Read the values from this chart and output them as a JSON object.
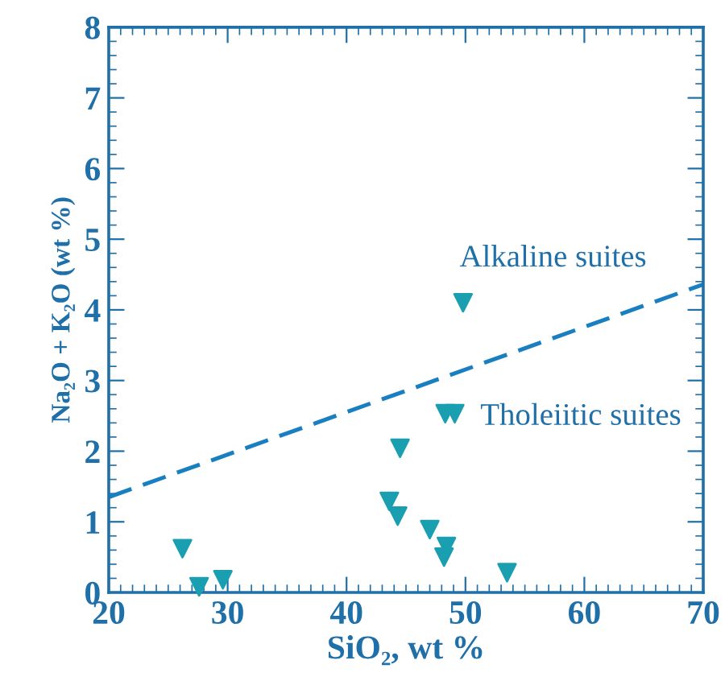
{
  "chart_data": {
    "type": "scatter",
    "xlabel": "SiO₂, wt %",
    "ylabel": "Na₂O + K₂O (wt %)",
    "xlim": [
      20,
      70
    ],
    "xticks": [
      20,
      30,
      40,
      50,
      60,
      70
    ],
    "ylim": [
      0,
      8
    ],
    "yticks": [
      0,
      1,
      2,
      3,
      4,
      5,
      6,
      7,
      8
    ],
    "grid": false,
    "legend": false,
    "annotations": [
      "Alkaline suites",
      "Tholeiitic suites"
    ],
    "series": [
      {
        "marker": "triangle",
        "color": "#1a9fb0",
        "x": [
          26.2,
          27.6,
          29.6,
          44.5,
          43.6,
          44.3,
          47.0,
          48.4,
          48.2,
          53.5,
          49.8,
          48.3,
          49.1
        ],
        "values": [
          0.62,
          0.08,
          0.18,
          2.04,
          1.29,
          1.08,
          0.89,
          0.65,
          0.5,
          0.28,
          4.1,
          2.53,
          2.53
        ]
      },
      {
        "type": "line",
        "line_style": "dashed",
        "color": "#1a7fc0",
        "x": [
          20,
          70
        ],
        "values": [
          1.35,
          4.36
        ]
      }
    ]
  }
}
